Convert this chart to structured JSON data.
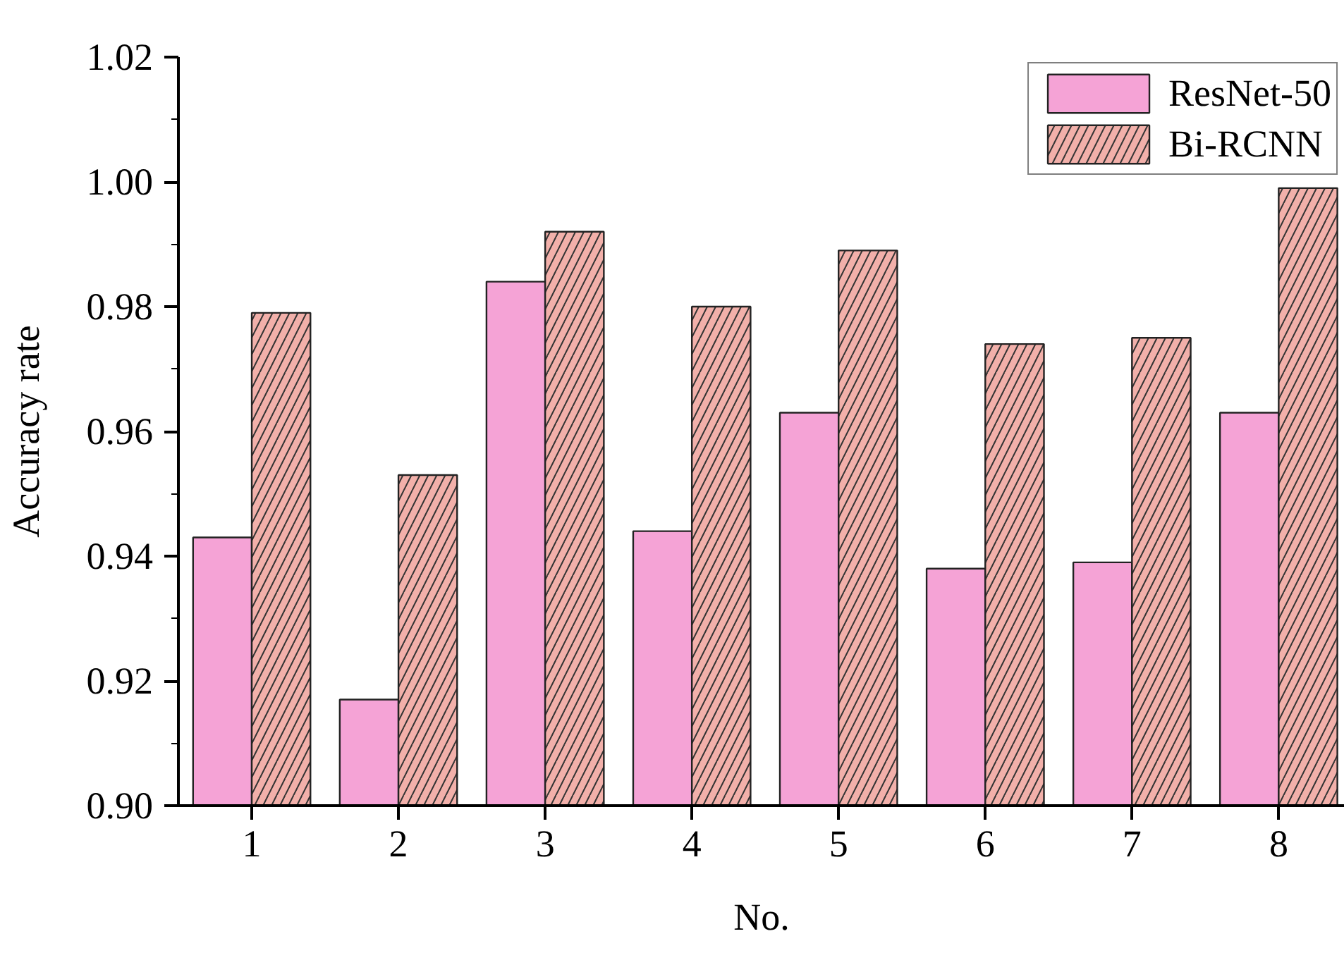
{
  "chart_data": {
    "type": "bar",
    "xlabel": "No.",
    "ylabel": "Accuracy rate",
    "categories": [
      "1",
      "2",
      "3",
      "4",
      "5",
      "6",
      "7",
      "8"
    ],
    "series": [
      {
        "name": "ResNet-50",
        "color": "#f5a3d6",
        "values": [
          0.943,
          0.917,
          0.984,
          0.944,
          0.963,
          0.938,
          0.939,
          0.963
        ]
      },
      {
        "name": "Bi-RCNN",
        "color": "#f2b0aa",
        "values": [
          0.979,
          0.953,
          0.992,
          0.98,
          0.989,
          0.974,
          0.975,
          0.999
        ]
      }
    ],
    "ylim": [
      0.9,
      1.02
    ],
    "yticks": [
      {
        "value": 0.9,
        "label": "0.90"
      },
      0.92,
      0.94,
      0.96,
      0.98,
      {
        "value": 1.0,
        "label": "1.00"
      },
      1.02
    ],
    "grid": false,
    "legend": "top right"
  }
}
